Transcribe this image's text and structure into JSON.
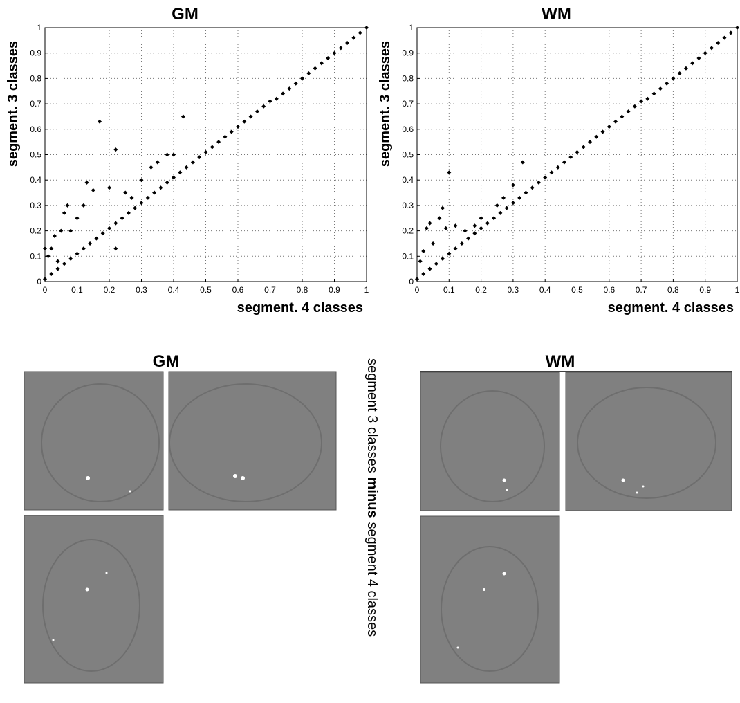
{
  "chart_data": [
    {
      "type": "scatter",
      "title": "GM",
      "xlabel": "segment. 4 classes",
      "ylabel": "segment. 3 classes",
      "color": "#000000",
      "grid": true,
      "xlim": [
        0,
        1
      ],
      "ylim": [
        0,
        1
      ],
      "xticks": [
        0,
        0.1,
        0.2,
        0.3,
        0.4,
        0.5,
        0.6,
        0.7,
        0.8,
        0.9,
        1
      ],
      "yticks": [
        0,
        0.1,
        0.2,
        0.3,
        0.4,
        0.5,
        0.6,
        0.7,
        0.8,
        0.9,
        1
      ],
      "x": [
        0,
        0.02,
        0.04,
        0.06,
        0.08,
        0.1,
        0.12,
        0.14,
        0.16,
        0.18,
        0.2,
        0.22,
        0.24,
        0.26,
        0.28,
        0.3,
        0.32,
        0.34,
        0.36,
        0.38,
        0.4,
        0.42,
        0.44,
        0.46,
        0.48,
        0.5,
        0.52,
        0.54,
        0.56,
        0.58,
        0.6,
        0.62,
        0.64,
        0.66,
        0.68,
        0.7,
        0.72,
        0.74,
        0.76,
        0.78,
        0.8,
        0.82,
        0.84,
        0.86,
        0.88,
        0.9,
        0.92,
        0.94,
        0.96,
        0.98,
        1,
        0.17,
        0.43,
        0.22,
        0.38,
        0.13,
        0.2,
        0.15,
        0.06,
        0.07,
        0.1,
        0.03,
        0.05,
        0.02,
        0.01,
        0.12,
        0.25,
        0.3,
        0.35,
        0.4,
        0.22,
        0.08,
        0,
        0.04,
        0.27,
        0.33
      ],
      "y": [
        0.01,
        0.03,
        0.05,
        0.07,
        0.09,
        0.11,
        0.13,
        0.15,
        0.17,
        0.19,
        0.21,
        0.23,
        0.25,
        0.27,
        0.29,
        0.31,
        0.33,
        0.35,
        0.37,
        0.39,
        0.41,
        0.43,
        0.45,
        0.47,
        0.49,
        0.51,
        0.53,
        0.55,
        0.57,
        0.59,
        0.61,
        0.63,
        0.65,
        0.67,
        0.69,
        0.71,
        0.72,
        0.74,
        0.76,
        0.78,
        0.8,
        0.82,
        0.84,
        0.86,
        0.88,
        0.9,
        0.92,
        0.94,
        0.96,
        0.98,
        1,
        0.63,
        0.65,
        0.52,
        0.5,
        0.39,
        0.37,
        0.36,
        0.27,
        0.3,
        0.25,
        0.18,
        0.2,
        0.13,
        0.1,
        0.3,
        0.35,
        0.4,
        0.47,
        0.5,
        0.13,
        0.2,
        0.13,
        0.08,
        0.33,
        0.45
      ]
    },
    {
      "type": "scatter",
      "title": "WM",
      "xlabel": "segment. 4 classes",
      "ylabel": "segment. 3 classes",
      "color": "#000000",
      "grid": true,
      "xlim": [
        0,
        1
      ],
      "ylim": [
        0,
        1
      ],
      "xticks": [
        0,
        0.1,
        0.2,
        0.3,
        0.4,
        0.5,
        0.6,
        0.7,
        0.8,
        0.9,
        1
      ],
      "yticks": [
        0,
        0.1,
        0.2,
        0.3,
        0.4,
        0.5,
        0.6,
        0.7,
        0.8,
        0.9,
        1
      ],
      "x": [
        0,
        0.02,
        0.04,
        0.06,
        0.08,
        0.1,
        0.12,
        0.14,
        0.16,
        0.18,
        0.2,
        0.22,
        0.24,
        0.26,
        0.28,
        0.3,
        0.32,
        0.34,
        0.36,
        0.38,
        0.4,
        0.42,
        0.44,
        0.46,
        0.48,
        0.5,
        0.52,
        0.54,
        0.56,
        0.58,
        0.6,
        0.62,
        0.64,
        0.66,
        0.68,
        0.7,
        0.72,
        0.74,
        0.76,
        0.78,
        0.8,
        0.82,
        0.84,
        0.86,
        0.88,
        0.9,
        0.92,
        0.94,
        0.96,
        0.98,
        1,
        0.1,
        0.33,
        0.08,
        0.04,
        0.03,
        0.05,
        0.02,
        0.01,
        0.12,
        0.15,
        0.18,
        0.25,
        0.27,
        0.3,
        0.07,
        0.09,
        0.2
      ],
      "y": [
        0.01,
        0.03,
        0.05,
        0.07,
        0.09,
        0.11,
        0.13,
        0.15,
        0.17,
        0.19,
        0.21,
        0.23,
        0.25,
        0.27,
        0.29,
        0.31,
        0.33,
        0.35,
        0.37,
        0.39,
        0.41,
        0.43,
        0.45,
        0.47,
        0.49,
        0.51,
        0.53,
        0.55,
        0.57,
        0.59,
        0.61,
        0.63,
        0.65,
        0.67,
        0.69,
        0.71,
        0.72,
        0.74,
        0.76,
        0.78,
        0.8,
        0.82,
        0.84,
        0.86,
        0.88,
        0.9,
        0.92,
        0.94,
        0.96,
        0.98,
        1,
        0.43,
        0.47,
        0.29,
        0.23,
        0.21,
        0.15,
        0.12,
        0.08,
        0.22,
        0.2,
        0.22,
        0.3,
        0.33,
        0.38,
        0.25,
        0.21,
        0.25
      ]
    }
  ],
  "image_panels": {
    "titles": [
      "GM",
      "WM"
    ],
    "side_label": [
      "segment 3 classes",
      "minus",
      "segment 4 classes"
    ]
  }
}
